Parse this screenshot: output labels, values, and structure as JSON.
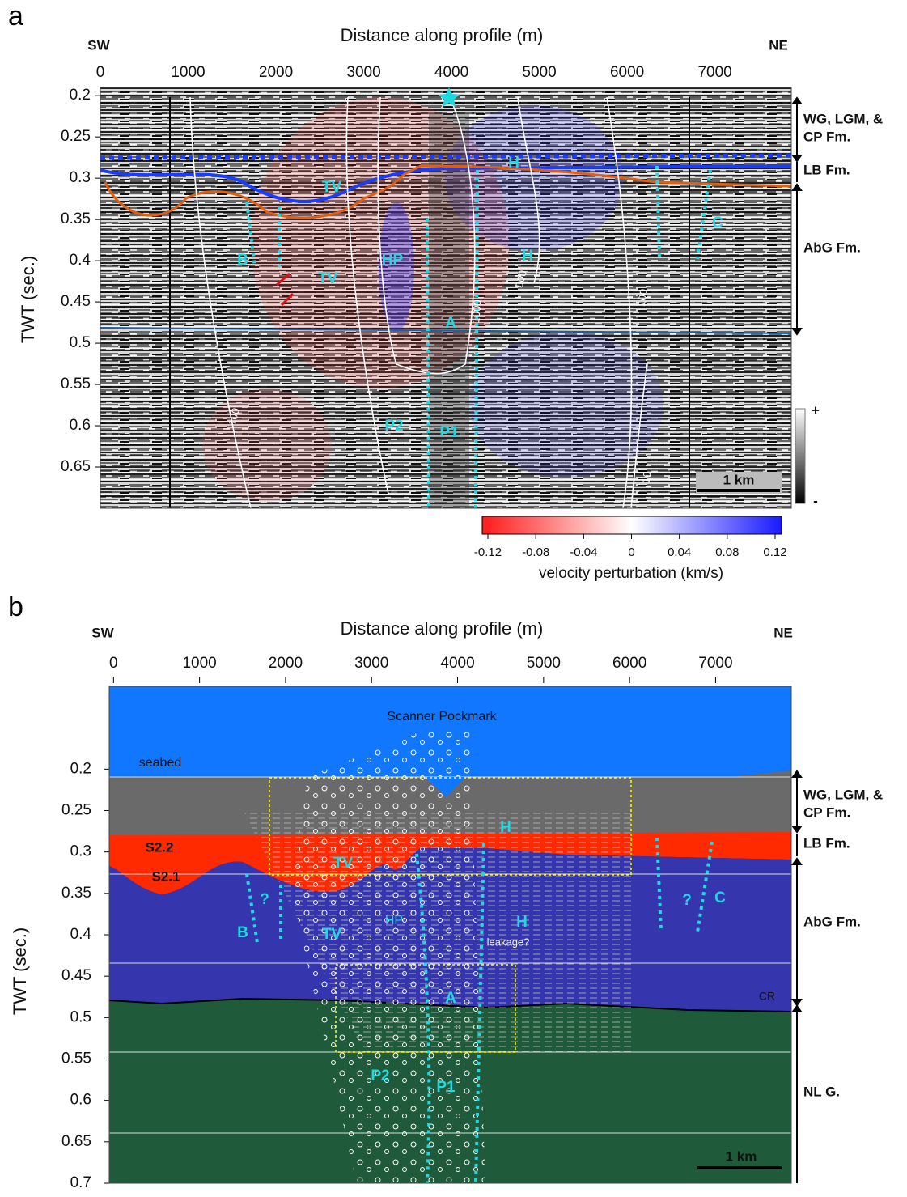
{
  "panels": [
    {
      "label": "a",
      "left_label": "SW",
      "right_label": "NE",
      "x_title": "Distance along profile (m)",
      "y_title": "TWT (sec.)",
      "xlim": [
        0,
        7870
      ],
      "xticks": [
        0,
        1000,
        2000,
        3000,
        4000,
        5000,
        6000,
        7000
      ],
      "ylim": [
        0.19,
        0.7
      ],
      "yticks": [
        0.2,
        0.25,
        0.3,
        0.35,
        0.4,
        0.45,
        0.5,
        0.55,
        0.6,
        0.65
      ],
      "formations": [
        "WG, LGM, &",
        "CP  Fm.",
        "LB Fm.",
        "AbG Fm."
      ],
      "annotations": [
        "B",
        "TV",
        "TV",
        "HP",
        "A",
        "H",
        "H",
        "C",
        "P2",
        "P1"
      ],
      "contours": [
        "500",
        "1000",
        "100",
        "100",
        "10"
      ],
      "scale_bar": "1 km",
      "grayscale": [
        "+",
        "-"
      ],
      "colorbar": {
        "title": "velocity perturbation (km/s)",
        "lim": [
          -0.12,
          0.12
        ],
        "ticks": [
          -0.12,
          -0.08,
          -0.04,
          0.0,
          0.04,
          0.08,
          0.12
        ]
      }
    },
    {
      "label": "b",
      "left_label": "SW",
      "right_label": "NE",
      "x_title": "Distance along profile (m)",
      "y_title": "TWT (sec.)",
      "xlim": [
        -50,
        7880
      ],
      "xticks": [
        0,
        1000,
        2000,
        3000,
        4000,
        5000,
        6000,
        7000
      ],
      "ylim": [
        0.1,
        0.7
      ],
      "yticks": [
        0.2,
        0.25,
        0.3,
        0.35,
        0.4,
        0.45,
        0.5,
        0.55,
        0.6,
        0.65,
        0.7
      ],
      "formations": [
        "WG, LGM, &",
        "CP  Fm.",
        "LB Fm.",
        "AbG Fm.",
        "NL G."
      ],
      "annotations": [
        "Scanner Pockmark",
        "seabed",
        "S2.2",
        "S2.1",
        "TV",
        "H",
        "HP",
        "H",
        "B",
        "?",
        "TV",
        "leakage?",
        "?",
        "C",
        "A",
        "CR",
        "P2",
        "P1"
      ],
      "scale_bar": "1 km"
    }
  ]
}
